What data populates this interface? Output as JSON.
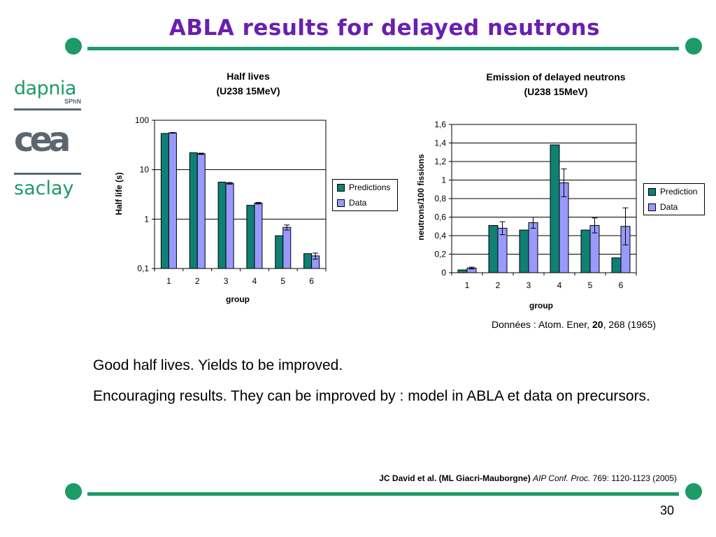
{
  "slide": {
    "title": "ABLA results for delayed neutrons",
    "page_number": "30",
    "colors": {
      "title": "#6a1fb0",
      "rule": "#1c9a67",
      "predictions": "#0f8074",
      "data": "#9999ff"
    }
  },
  "logos": {
    "dapnia": "dapnia",
    "dapnia_sub": "SPhN",
    "cea": "cea",
    "saclay": "saclay"
  },
  "chart_data": [
    {
      "type": "bar",
      "title": "Half lives",
      "subtitle": "(U238 15MeV)",
      "xlabel": "group",
      "ylabel": "Half life (s)",
      "yscale": "log",
      "ylim": [
        0.1,
        100
      ],
      "yticks": [
        "0,1",
        "1",
        "10",
        "100"
      ],
      "categories": [
        "1",
        "2",
        "3",
        "4",
        "5",
        "6"
      ],
      "grid": true,
      "legend_position": "right",
      "series": [
        {
          "name": "Predictions",
          "values": [
            54,
            22,
            5.6,
            1.9,
            0.46,
            0.2
          ]
        },
        {
          "name": "Data",
          "values": [
            55.7,
            21,
            5.3,
            2.1,
            0.68,
            0.18
          ],
          "errors": [
            0.8,
            0.6,
            0.2,
            0.08,
            0.08,
            0.025
          ]
        }
      ]
    },
    {
      "type": "bar",
      "title": "Emission of delayed neutrons",
      "subtitle": "(U238 15MeV)",
      "xlabel": "group",
      "ylabel": "neutrons/100 fissions",
      "ylim": [
        0,
        1.6
      ],
      "yticks": [
        "0",
        "0,2",
        "0,4",
        "0,6",
        "0,8",
        "1",
        "1,2",
        "1,4",
        "1,6"
      ],
      "categories": [
        "1",
        "2",
        "3",
        "4",
        "5",
        "6"
      ],
      "grid": true,
      "legend_position": "right",
      "series": [
        {
          "name": "Prediction",
          "values": [
            0.03,
            0.51,
            0.46,
            1.38,
            0.46,
            0.16
          ]
        },
        {
          "name": "Data",
          "values": [
            0.05,
            0.48,
            0.54,
            0.97,
            0.51,
            0.5
          ],
          "errors": [
            0.01,
            0.07,
            0.06,
            0.15,
            0.08,
            0.2
          ]
        }
      ]
    }
  ],
  "source": {
    "prefix": "Données : Atom. Ener, ",
    "volume": "20",
    "suffix": ", 268 (1965)"
  },
  "text": {
    "line1": "Good half lives. Yields to be improved.",
    "line2": "Encouraging results. They can be improved by : model in ABLA et data on precursors."
  },
  "reference": {
    "authors": "JC David et al. (ML Giacri-Mauborgne) ",
    "journal": "AIP Conf. Proc.",
    "details": " 769: 1120-1123 (2005)"
  }
}
